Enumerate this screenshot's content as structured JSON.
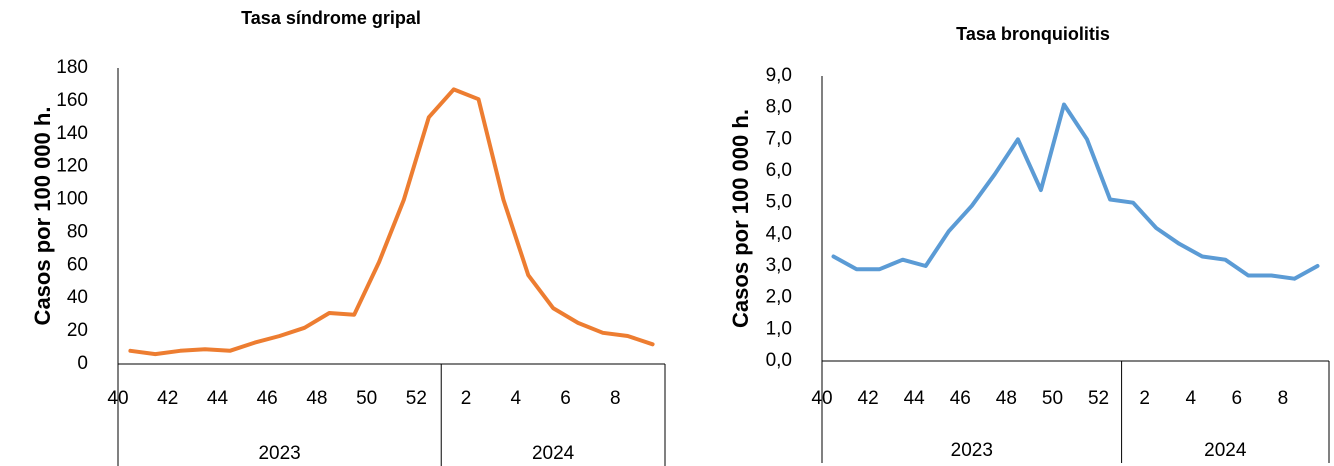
{
  "chart_data": [
    {
      "type": "line",
      "title": "Tasa síndrome gripal",
      "ylabel": "Casos por 100 000 h.",
      "xlabel": "",
      "ylim": [
        0,
        180
      ],
      "yticks": [
        "0",
        "20",
        "40",
        "60",
        "80",
        "100",
        "120",
        "140",
        "160",
        "180"
      ],
      "x": [
        "40",
        "41",
        "42",
        "43",
        "44",
        "45",
        "46",
        "47",
        "48",
        "49",
        "50",
        "51",
        "52",
        "1",
        "2",
        "3",
        "4",
        "5",
        "6",
        "7",
        "8",
        "9"
      ],
      "xtick_labels": [
        "40",
        "42",
        "44",
        "46",
        "48",
        "50",
        "52",
        "2",
        "4",
        "6",
        "8"
      ],
      "year_groups": [
        {
          "label": "2023",
          "weeks": 13
        },
        {
          "label": "2024",
          "weeks": 9
        }
      ],
      "series": [
        {
          "color": "#ED7D31",
          "values": [
            8,
            6,
            8,
            9,
            8,
            13,
            17,
            22,
            31,
            30,
            62,
            100,
            150,
            167,
            161,
            100,
            54,
            34,
            25,
            19,
            17,
            12
          ]
        }
      ],
      "grid": false
    },
    {
      "type": "line",
      "title": "Tasa bronquiolitis",
      "ylabel": "Casos por 100 000 h.",
      "xlabel": "",
      "ylim": [
        0,
        9
      ],
      "yticks": [
        "0,0",
        "1,0",
        "2,0",
        "3,0",
        "4,0",
        "5,0",
        "6,0",
        "7,0",
        "8,0",
        "9,0"
      ],
      "x": [
        "40",
        "41",
        "42",
        "43",
        "44",
        "45",
        "46",
        "47",
        "48",
        "49",
        "50",
        "51",
        "52",
        "1",
        "2",
        "3",
        "4",
        "5",
        "6",
        "7",
        "8",
        "9"
      ],
      "xtick_labels": [
        "40",
        "42",
        "44",
        "46",
        "48",
        "50",
        "52",
        "2",
        "4",
        "6",
        "8"
      ],
      "year_groups": [
        {
          "label": "2023",
          "weeks": 13
        },
        {
          "label": "2024",
          "weeks": 9
        }
      ],
      "series": [
        {
          "color": "#5B9BD5",
          "values": [
            3.3,
            2.9,
            2.9,
            3.2,
            3.0,
            4.1,
            4.9,
            5.9,
            7.0,
            5.4,
            8.1,
            7.0,
            5.1,
            5.0,
            4.2,
            3.7,
            3.3,
            3.2,
            2.7,
            2.7,
            2.6,
            3.0
          ]
        }
      ],
      "grid": false
    }
  ]
}
